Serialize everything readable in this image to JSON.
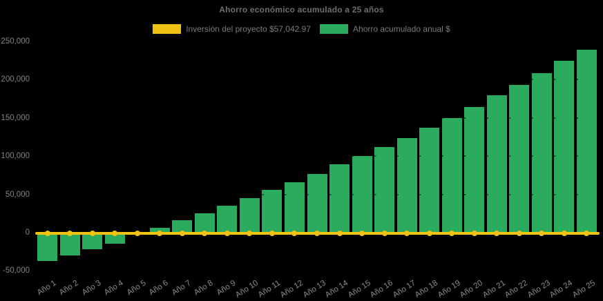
{
  "title": "Ahorro económico acumulado a 25 años",
  "colors": {
    "background": "#000000",
    "bar_green": "#2aab5e",
    "line_yellow": "#f0c211",
    "title_text": "#6e6e6e",
    "legend_text": "#7a7a7a",
    "axis_text": "#858585"
  },
  "legend": {
    "items": [
      {
        "label": "Inversión del proyecto $57,042.97",
        "swatch_color": "#f0c211",
        "series": "investment-line"
      },
      {
        "label": "Ahorro acumulado anual $",
        "swatch_color": "#2aab5e",
        "series": "savings-bars"
      }
    ]
  },
  "chart_data": {
    "type": "bar",
    "title": "Ahorro económico acumulado a 25 años",
    "categories": [
      "Año 1",
      "Año 2",
      "Año 3",
      "Año 4",
      "Año 5",
      "Año 6",
      "Año 7",
      "Año 8",
      "Año 9",
      "Año 10",
      "Año 11",
      "Año 12",
      "Año 13",
      "Año 14",
      "Año 15",
      "Año 16",
      "Año 17",
      "Año 18",
      "Año 19",
      "Año 20",
      "Año 21",
      "Año 22",
      "Año 23",
      "Año 24",
      "Año 25"
    ],
    "series": [
      {
        "name": "Ahorro acumulado anual $",
        "type": "bar",
        "color": "#2aab5e",
        "values": [
          -37000,
          -29500,
          -22000,
          -14500,
          -2000,
          6000,
          15800,
          25000,
          35500,
          45500,
          56000,
          66000,
          76500,
          89500,
          100000,
          111500,
          123500,
          137000,
          150000,
          164500,
          179000,
          193000,
          208500,
          224500,
          239000
        ]
      },
      {
        "name": "Inversión del proyecto $57,042.97",
        "type": "line",
        "color": "#f0c211",
        "values": [
          0,
          0,
          0,
          0,
          0,
          0,
          0,
          0,
          0,
          0,
          0,
          0,
          0,
          0,
          0,
          0,
          0,
          0,
          0,
          0,
          0,
          0,
          0,
          0,
          0
        ]
      }
    ],
    "xlabel": "",
    "ylabel": "",
    "ylim": [
      -50000,
      250000
    ],
    "ytick_values": [
      250000,
      200000,
      150000,
      100000,
      50000,
      0,
      -50000
    ],
    "ytick_labels": [
      "250,000",
      "200,000",
      "150,000",
      "100,000",
      "50,000",
      "0",
      "-50,000"
    ],
    "grid": "dashed-dark-overlay",
    "legend_position": "top"
  }
}
